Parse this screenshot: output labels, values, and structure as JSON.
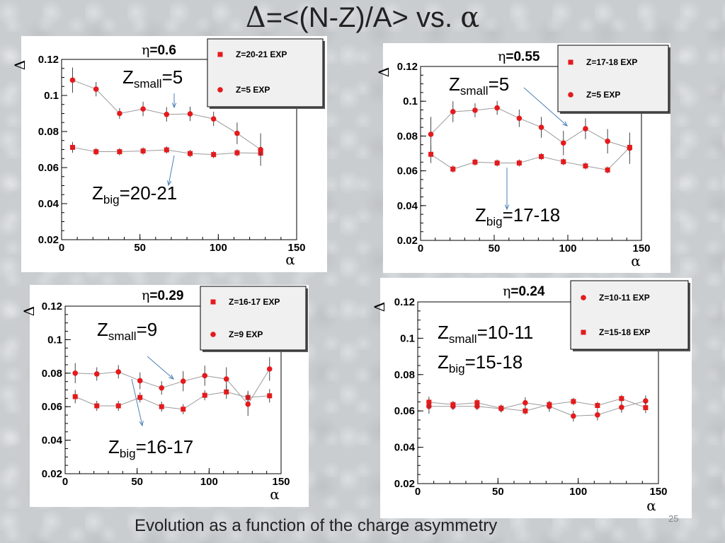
{
  "title": {
    "delta_symbol": "Δ",
    "expression": "=<(N-Z)/A> vs. ",
    "alpha_symbol": "α"
  },
  "caption": "Evolution as a function of the charge asymmetry",
  "page_number": "25",
  "colors": {
    "marker": "#e41a1c",
    "line": "#9a9a9a",
    "arrow": "#4a7fb5"
  },
  "chart_data": [
    {
      "type": "scatter",
      "eta_label": "η",
      "eta_value": "=0.6",
      "xlabel": "α",
      "ylabel": "Δ",
      "xlim": [
        0,
        150
      ],
      "ylim": [
        0.02,
        0.12
      ],
      "x_ticks": [
        "0",
        "50",
        "100",
        "150"
      ],
      "y_ticks": [
        "0.02",
        "0.04",
        "0.06",
        "0.08",
        "0.1",
        "0.12"
      ],
      "legend_position": "top-right",
      "series": [
        {
          "name": "Z=20-21 EXP",
          "marker": "square",
          "x": [
            7,
            22,
            37,
            52,
            67,
            82,
            97,
            112,
            127
          ],
          "y": [
            0.0712,
            0.0688,
            0.0688,
            0.0692,
            0.0698,
            0.0678,
            0.0672,
            0.0682,
            0.068
          ],
          "err": [
            0.003,
            0.002,
            0.002,
            0.002,
            0.002,
            0.002,
            0.002,
            0.002,
            0.002
          ]
        },
        {
          "name": "Z=5 EXP",
          "marker": "circle",
          "x": [
            7,
            22,
            37,
            52,
            67,
            82,
            97,
            112,
            127
          ],
          "y": [
            0.1085,
            0.1035,
            0.09,
            0.0925,
            0.0895,
            0.0898,
            0.087,
            0.079,
            0.07
          ],
          "err": [
            0.007,
            0.004,
            0.003,
            0.004,
            0.004,
            0.004,
            0.004,
            0.006,
            0.009
          ]
        }
      ],
      "annotations": [
        {
          "main": "Z",
          "sub": "small",
          "suffix": "=5"
        },
        {
          "main": "Z",
          "sub": "big",
          "suffix": "=20-21"
        }
      ]
    },
    {
      "type": "scatter",
      "eta_label": "η",
      "eta_value": "=0.55",
      "xlabel": "α",
      "ylabel": "Δ",
      "xlim": [
        0,
        150
      ],
      "ylim": [
        0.02,
        0.12
      ],
      "x_ticks": [
        "0",
        "50",
        "100",
        "150"
      ],
      "y_ticks": [
        "0.02",
        "0.04",
        "0.06",
        "0.08",
        "0.1",
        "0.12"
      ],
      "legend_position": "top-right",
      "series": [
        {
          "name": "Z=17-18 EXP",
          "marker": "square",
          "x": [
            7,
            22,
            37,
            52,
            67,
            82,
            97,
            112,
            127,
            142
          ],
          "y": [
            0.0695,
            0.061,
            0.065,
            0.0645,
            0.0645,
            0.0682,
            0.0652,
            0.0628,
            0.0605,
            0.0735
          ],
          "err": [
            0.005,
            0.002,
            0.002,
            0.002,
            0.002,
            0.002,
            0.002,
            0.002,
            0.002,
            0.004
          ]
        },
        {
          "name": "Z=5 EXP",
          "marker": "circle",
          "x": [
            7,
            22,
            37,
            52,
            67,
            82,
            97,
            112,
            127,
            142
          ],
          "y": [
            0.081,
            0.094,
            0.0948,
            0.0962,
            0.0902,
            0.085,
            0.076,
            0.0842,
            0.077,
            0.073
          ],
          "err": [
            0.01,
            0.006,
            0.004,
            0.004,
            0.005,
            0.006,
            0.007,
            0.006,
            0.007,
            0.009
          ]
        }
      ],
      "annotations": [
        {
          "main": "Z",
          "sub": "small",
          "suffix": "=5"
        },
        {
          "main": "Z",
          "sub": "big",
          "suffix": "=17-18"
        }
      ]
    },
    {
      "type": "scatter",
      "eta_label": "η",
      "eta_value": "=0.29",
      "xlabel": "α",
      "ylabel": "Δ",
      "xlim": [
        0,
        150
      ],
      "ylim": [
        0.02,
        0.12
      ],
      "x_ticks": [
        "0",
        "50",
        "100",
        "150"
      ],
      "y_ticks": [
        "0.02",
        "0.04",
        "0.06",
        "0.08",
        "0.1",
        "0.12"
      ],
      "legend_position": "top-right",
      "series": [
        {
          "name": "Z=16-17 EXP",
          "marker": "square",
          "x": [
            7,
            22,
            37,
            52,
            67,
            82,
            97,
            112,
            127,
            142
          ],
          "y": [
            0.066,
            0.0605,
            0.0605,
            0.0655,
            0.06,
            0.0585,
            0.0668,
            0.0688,
            0.0655,
            0.0665
          ],
          "err": [
            0.004,
            0.003,
            0.003,
            0.003,
            0.003,
            0.003,
            0.003,
            0.004,
            0.004,
            0.004
          ]
        },
        {
          "name": "Z=9 EXP",
          "marker": "circle",
          "x": [
            7,
            22,
            37,
            52,
            67,
            82,
            97,
            112,
            127,
            142
          ],
          "y": [
            0.08,
            0.0795,
            0.0808,
            0.0755,
            0.0712,
            0.0752,
            0.0785,
            0.0765,
            0.0615,
            0.0825
          ],
          "err": [
            0.006,
            0.004,
            0.004,
            0.005,
            0.004,
            0.006,
            0.006,
            0.007,
            0.007,
            0.007
          ]
        }
      ],
      "annotations": [
        {
          "main": "Z",
          "sub": "small",
          "suffix": "=9"
        },
        {
          "main": "Z",
          "sub": "big",
          "suffix": "=16-17"
        }
      ]
    },
    {
      "type": "scatter",
      "eta_label": "η",
      "eta_value": "=0.24",
      "xlabel": "α",
      "ylabel": "Δ",
      "xlim": [
        0,
        150
      ],
      "ylim": [
        0.02,
        0.12
      ],
      "x_ticks": [
        "0",
        "50",
        "100",
        "150"
      ],
      "y_ticks": [
        "0.02",
        "0.04",
        "0.06",
        "0.08",
        "0.1",
        "0.12"
      ],
      "legend_position": "top-right",
      "series": [
        {
          "name": "Z=10-11 EXP",
          "marker": "circle",
          "x": [
            7,
            22,
            37,
            52,
            67,
            82,
            97,
            112,
            127,
            142
          ],
          "y": [
            0.0625,
            0.0625,
            0.0625,
            0.0612,
            0.0645,
            0.0625,
            0.0572,
            0.0578,
            0.062,
            0.0655
          ],
          "err": [
            0.004,
            0.002,
            0.002,
            0.002,
            0.003,
            0.003,
            0.003,
            0.003,
            0.003,
            0.003
          ]
        },
        {
          "name": "Z=15-18 EXP",
          "marker": "square",
          "x": [
            7,
            22,
            37,
            52,
            67,
            82,
            97,
            112,
            127,
            142
          ],
          "y": [
            0.0648,
            0.0635,
            0.0645,
            0.0615,
            0.06,
            0.0635,
            0.0652,
            0.063,
            0.0668,
            0.0618
          ],
          "err": [
            0.003,
            0.002,
            0.002,
            0.002,
            0.002,
            0.002,
            0.002,
            0.002,
            0.002,
            0.003
          ]
        }
      ],
      "annotations": [
        {
          "main": "Z",
          "sub": "small",
          "suffix": "=10-11"
        },
        {
          "main": "Z",
          "sub": "big",
          "suffix": "=15-18"
        }
      ]
    }
  ]
}
